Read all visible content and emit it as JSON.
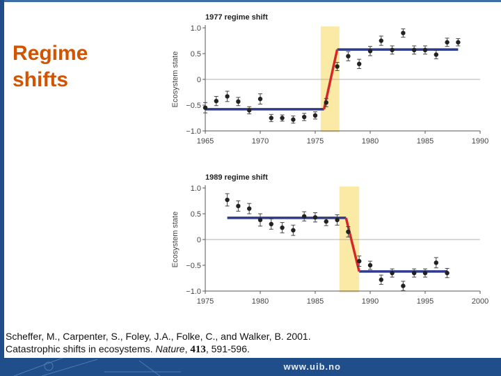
{
  "slide": {
    "title_line1": "Regime",
    "title_line2": "shifts",
    "footer_url": "www.uib.no"
  },
  "citation": {
    "authors": "Scheffer, M., Carpenter, S., Foley, J.A., Folke, C., and Walker, B. 2001.",
    "title": "Catastrophic shifts in ecosystems.",
    "journal": "Nature",
    "volume": "413",
    "pages": ", 591-596."
  },
  "colors": {
    "title": "#d35400",
    "regime_line": "#2e3a8c",
    "shift_line": "#d62728",
    "highlight": "#fbe9a6",
    "points": "#222222"
  },
  "chart_data": [
    {
      "type": "scatter",
      "title": "1977 regime shift",
      "xlabel": "",
      "ylabel": "Ecosystem state",
      "xlim": [
        1965,
        1990
      ],
      "ylim": [
        -1.0,
        1.0
      ],
      "xticks": [
        1965,
        1970,
        1975,
        1980,
        1985,
        1990
      ],
      "yticks": [
        1.0,
        0.5,
        0,
        -0.5,
        -1.0
      ],
      "ytick_labels": [
        "1.0",
        "0.5",
        "0",
        "−0.5",
        "−1.0"
      ],
      "highlight_x": [
        1975.5,
        1977.2
      ],
      "points": [
        {
          "x": 1965,
          "y": -0.55,
          "err": 0.1
        },
        {
          "x": 1966,
          "y": -0.42,
          "err": 0.09
        },
        {
          "x": 1967,
          "y": -0.33,
          "err": 0.1
        },
        {
          "x": 1968,
          "y": -0.43,
          "err": 0.08
        },
        {
          "x": 1969,
          "y": -0.6,
          "err": 0.07
        },
        {
          "x": 1970,
          "y": -0.38,
          "err": 0.1
        },
        {
          "x": 1971,
          "y": -0.75,
          "err": 0.07
        },
        {
          "x": 1972,
          "y": -0.75,
          "err": 0.06
        },
        {
          "x": 1973,
          "y": -0.78,
          "err": 0.07
        },
        {
          "x": 1974,
          "y": -0.73,
          "err": 0.07
        },
        {
          "x": 1975,
          "y": -0.7,
          "err": 0.07
        },
        {
          "x": 1976,
          "y": -0.45,
          "err": 0.08
        },
        {
          "x": 1977,
          "y": 0.25,
          "err": 0.08
        },
        {
          "x": 1978,
          "y": 0.45,
          "err": 0.09
        },
        {
          "x": 1979,
          "y": 0.3,
          "err": 0.09
        },
        {
          "x": 1980,
          "y": 0.55,
          "err": 0.09
        },
        {
          "x": 1981,
          "y": 0.75,
          "err": 0.09
        },
        {
          "x": 1982,
          "y": 0.57,
          "err": 0.08
        },
        {
          "x": 1983,
          "y": 0.9,
          "err": 0.08
        },
        {
          "x": 1984,
          "y": 0.57,
          "err": 0.08
        },
        {
          "x": 1985,
          "y": 0.57,
          "err": 0.08
        },
        {
          "x": 1986,
          "y": 0.48,
          "err": 0.08
        },
        {
          "x": 1987,
          "y": 0.72,
          "err": 0.08
        },
        {
          "x": 1988,
          "y": 0.72,
          "err": 0.07
        }
      ],
      "regime_before": {
        "x": [
          1965,
          1975.8
        ],
        "y": -0.58
      },
      "regime_after": {
        "x": [
          1977.0,
          1988
        ],
        "y": 0.58
      },
      "shift_line": {
        "x": [
          1975.8,
          1977.0
        ],
        "y": [
          -0.58,
          0.58
        ]
      }
    },
    {
      "type": "scatter",
      "title": "1989 regime shift",
      "xlabel": "",
      "ylabel": "Ecosystem state",
      "xlim": [
        1975,
        2000
      ],
      "ylim": [
        -1.0,
        1.0
      ],
      "xticks": [
        1975,
        1980,
        1985,
        1990,
        1995,
        2000
      ],
      "yticks": [
        1.0,
        0.5,
        0,
        -0.5,
        -1.0
      ],
      "ytick_labels": [
        "1.0",
        "0.5",
        "0",
        "−0.5",
        "−1.0"
      ],
      "highlight_x": [
        1987.2,
        1989.0
      ],
      "points": [
        {
          "x": 1977,
          "y": 0.77,
          "err": 0.12
        },
        {
          "x": 1978,
          "y": 0.65,
          "err": 0.1
        },
        {
          "x": 1979,
          "y": 0.6,
          "err": 0.1
        },
        {
          "x": 1980,
          "y": 0.38,
          "err": 0.12
        },
        {
          "x": 1981,
          "y": 0.3,
          "err": 0.1
        },
        {
          "x": 1982,
          "y": 0.23,
          "err": 0.1
        },
        {
          "x": 1983,
          "y": 0.18,
          "err": 0.1
        },
        {
          "x": 1984,
          "y": 0.45,
          "err": 0.09
        },
        {
          "x": 1985,
          "y": 0.43,
          "err": 0.09
        },
        {
          "x": 1986,
          "y": 0.35,
          "err": 0.08
        },
        {
          "x": 1987,
          "y": 0.38,
          "err": 0.1
        },
        {
          "x": 1988,
          "y": 0.15,
          "err": 0.1
        },
        {
          "x": 1989,
          "y": -0.42,
          "err": 0.1
        },
        {
          "x": 1990,
          "y": -0.5,
          "err": 0.08
        },
        {
          "x": 1991,
          "y": -0.78,
          "err": 0.09
        },
        {
          "x": 1992,
          "y": -0.65,
          "err": 0.08
        },
        {
          "x": 1993,
          "y": -0.9,
          "err": 0.09
        },
        {
          "x": 1994,
          "y": -0.65,
          "err": 0.08
        },
        {
          "x": 1995,
          "y": -0.65,
          "err": 0.08
        },
        {
          "x": 1996,
          "y": -0.45,
          "err": 0.1
        },
        {
          "x": 1997,
          "y": -0.65,
          "err": 0.09
        }
      ],
      "regime_before": {
        "x": [
          1977,
          1987.8
        ],
        "y": 0.42
      },
      "regime_after": {
        "x": [
          1989.0,
          1997
        ],
        "y": -0.62
      },
      "shift_line": {
        "x": [
          1987.8,
          1989.0
        ],
        "y": [
          0.42,
          -0.62
        ]
      }
    }
  ]
}
